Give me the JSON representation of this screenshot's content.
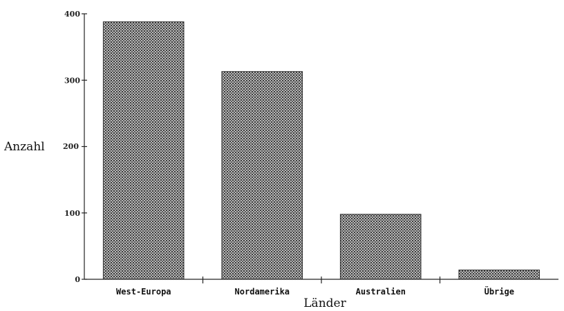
{
  "chart_data": {
    "type": "bar",
    "categories": [
      "West-Europa",
      "Nordamerika",
      "Australien",
      "Übrige"
    ],
    "values": [
      388,
      313,
      98,
      14
    ],
    "title": "",
    "xlabel": "Länder",
    "ylabel": "Anzahl",
    "ylim": [
      0,
      400
    ],
    "yticks": [
      0,
      100,
      300,
      400
    ],
    "ytick_labels": [
      "0",
      "100",
      "300",
      "400"
    ],
    "ytick_200_label": "200",
    "grid": false,
    "bar_fill": "#8a8a8a"
  }
}
